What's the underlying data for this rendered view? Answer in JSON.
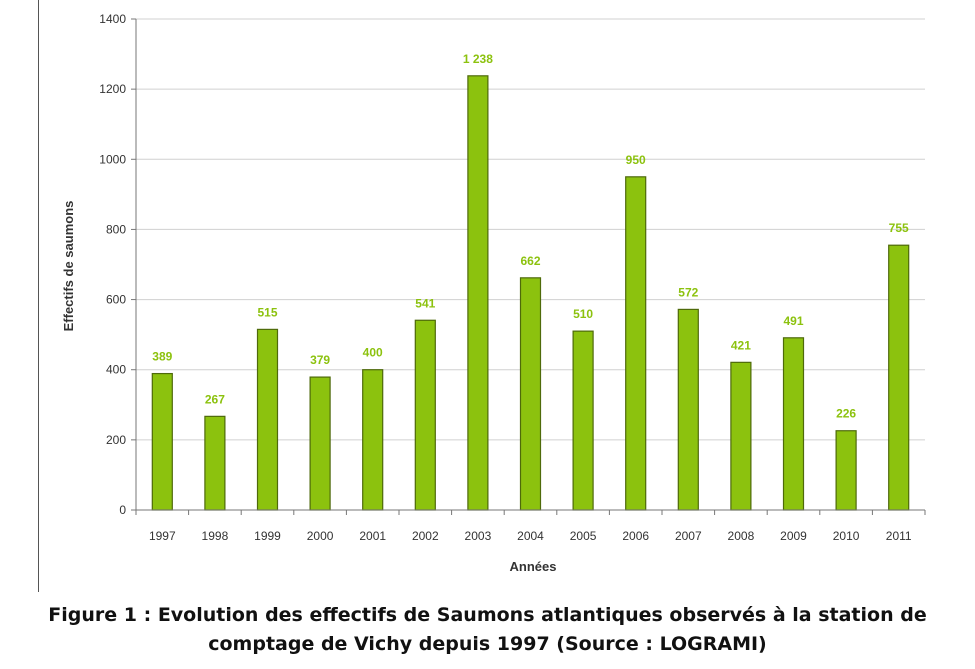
{
  "chart_data": {
    "type": "bar",
    "categories": [
      "1997",
      "1998",
      "1999",
      "2000",
      "2001",
      "2002",
      "2003",
      "2004",
      "2005",
      "2006",
      "2007",
      "2008",
      "2009",
      "2010",
      "2011"
    ],
    "values": [
      389,
      267,
      515,
      379,
      400,
      541,
      1238,
      662,
      510,
      950,
      572,
      421,
      491,
      226,
      755
    ],
    "data_labels": [
      "389",
      "267",
      "515",
      "379",
      "400",
      "541",
      "1 238",
      "662",
      "510",
      "950",
      "572",
      "421",
      "491",
      "226",
      "755"
    ],
    "xlabel": "Années",
    "ylabel": "Effectifs de saumons",
    "ylim": [
      0,
      1400
    ],
    "yticks": [
      0,
      200,
      400,
      600,
      800,
      1000,
      1200,
      1400
    ],
    "grid": true,
    "legend": false,
    "colors": {
      "bar": "#8cc20e",
      "bar_edge": "#4e6a0a",
      "label": "#8cc20e",
      "grid": "#d0d0d0",
      "axis": "#777777"
    }
  },
  "caption": {
    "line1": "Figure 1 : Evolution des effectifs de Saumons atlantiques observés à la station de",
    "line2": "comptage de Vichy depuis 1997 (Source : LOGRAMI)"
  }
}
